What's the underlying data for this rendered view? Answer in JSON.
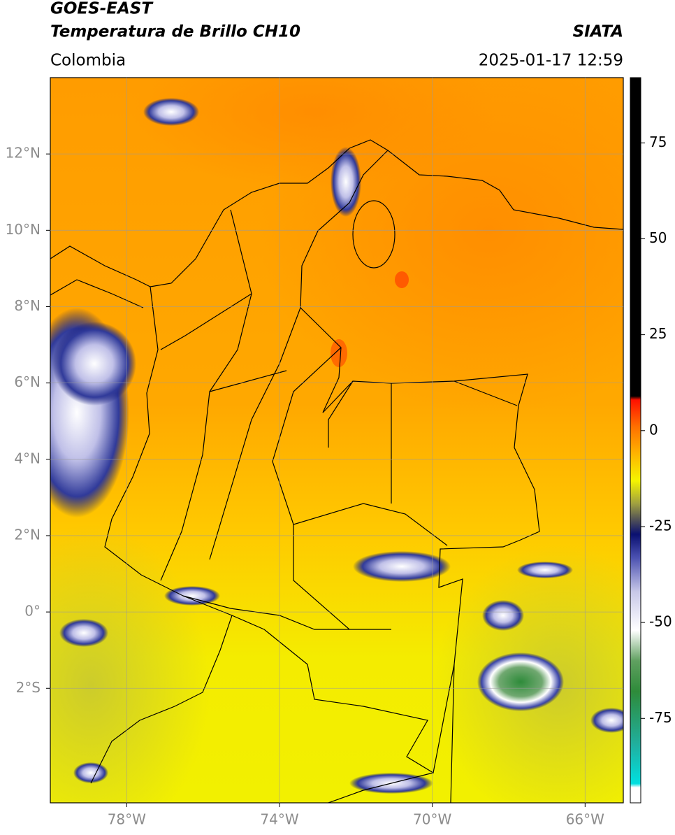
{
  "header": {
    "title": "GOES-EAST",
    "subtitle": "Temperatura de Brillo CH10",
    "source": "SIATA",
    "region": "Colombia",
    "datetime": "2025-01-17 12:59"
  },
  "map": {
    "lonlim": [
      -80,
      -65
    ],
    "latlim": [
      -5,
      14
    ],
    "lon_ticks": [
      {
        "value": -78,
        "label": "78°W"
      },
      {
        "value": -74,
        "label": "74°W"
      },
      {
        "value": -70,
        "label": "70°W"
      },
      {
        "value": -66,
        "label": "66°W"
      }
    ],
    "lat_ticks": [
      {
        "value": 12,
        "label": "12°N"
      },
      {
        "value": 10,
        "label": "10°N"
      },
      {
        "value": 8,
        "label": "8°N"
      },
      {
        "value": 6,
        "label": "6°N"
      },
      {
        "value": 4,
        "label": "4°N"
      },
      {
        "value": 2,
        "label": "2°N"
      },
      {
        "value": 0,
        "label": "0°"
      },
      {
        "value": -2,
        "label": "2°S"
      }
    ],
    "grid": true
  },
  "colorbar": {
    "clim": [
      -97,
      92
    ],
    "ticks": [
      75,
      50,
      25,
      0,
      -25,
      -50,
      -75
    ],
    "colormap": [
      {
        "value": -97,
        "color": "#ffffff"
      },
      {
        "value": -93,
        "color": "#ffffff"
      },
      {
        "value": -92,
        "color": "#00e0e0"
      },
      {
        "value": -82,
        "color": "#20b0a0"
      },
      {
        "value": -68,
        "color": "#2e8b3a"
      },
      {
        "value": -60,
        "color": "#60a060"
      },
      {
        "value": -52,
        "color": "#ffffff"
      },
      {
        "value": -42,
        "color": "#c8c8e8"
      },
      {
        "value": -33,
        "color": "#4a50b0"
      },
      {
        "value": -27,
        "color": "#0a1070"
      },
      {
        "value": -23,
        "color": "#555555"
      },
      {
        "value": -19,
        "color": "#a0a040"
      },
      {
        "value": -13,
        "color": "#f5f500"
      },
      {
        "value": -5,
        "color": "#ffaa00"
      },
      {
        "value": 1,
        "color": "#ff7000"
      },
      {
        "value": 8,
        "color": "#ff1000"
      },
      {
        "value": 9,
        "color": "#000000"
      },
      {
        "value": 92,
        "color": "#000000"
      }
    ]
  }
}
